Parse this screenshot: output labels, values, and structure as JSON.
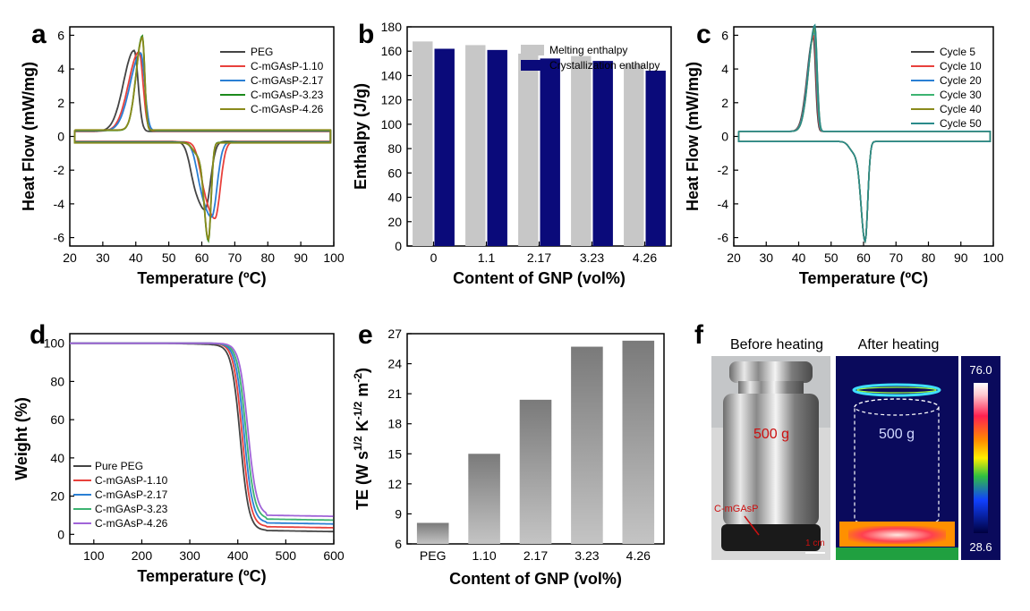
{
  "panels": [
    {
      "letter": "a"
    },
    {
      "letter": "b"
    },
    {
      "letter": "c"
    },
    {
      "letter": "d"
    },
    {
      "letter": "e"
    },
    {
      "letter": "f"
    }
  ],
  "chart_data": [
    {
      "id": "a",
      "type": "line",
      "xlabel": "Temperature (ºC)",
      "ylabel": "Heat Flow (mW/mg)",
      "xlim": [
        20,
        100
      ],
      "ylim": [
        -6.5,
        6.5
      ],
      "xticks": [
        20,
        30,
        40,
        50,
        60,
        70,
        80,
        90,
        100
      ],
      "yticks": [
        -6,
        -4,
        -2,
        0,
        2,
        4,
        6
      ],
      "legend_position": "top-right",
      "series": [
        {
          "name": "PEG",
          "color": "#444444",
          "peak_x": 39.5,
          "peak_y": 4.8,
          "valley_x": 61.0,
          "valley_y": -4.0
        },
        {
          "name": "C-mGAsP-1.10",
          "color": "#e8413c",
          "peak_x": 41.0,
          "peak_y": 4.7,
          "valley_x": 64.0,
          "valley_y": -4.5
        },
        {
          "name": "C-mGAsP-2.17",
          "color": "#2a7fd4",
          "peak_x": 41.5,
          "peak_y": 4.6,
          "valley_x": 63.0,
          "valley_y": -4.4
        },
        {
          "name": "C-mGAsP-3.23",
          "color": "#1c8a1c",
          "peak_x": 42.0,
          "peak_y": 5.6,
          "valley_x": 62.0,
          "valley_y": -5.8
        },
        {
          "name": "C-mGAsP-4.26",
          "color": "#8a8a1c",
          "peak_x": 42.0,
          "peak_y": 5.5,
          "valley_x": 62.0,
          "valley_y": -5.7
        }
      ]
    },
    {
      "id": "b",
      "type": "bar",
      "xlabel": "Content of GNP (vol%)",
      "ylabel": "Enthalpy (J/g)",
      "categories": [
        "0",
        "1.1",
        "2.17",
        "3.23",
        "4.26"
      ],
      "ylim": [
        0,
        180
      ],
      "yticks": [
        0,
        20,
        40,
        60,
        80,
        100,
        120,
        140,
        160,
        180
      ],
      "legend_position": "top-right",
      "series": [
        {
          "name": "Melting enthalpy",
          "color": "#c7c7c7",
          "values": [
            168,
            165,
            158,
            156,
            149
          ]
        },
        {
          "name": "Crystallization enthalpy",
          "color": "#0a0a7a",
          "values": [
            162,
            161,
            154,
            152,
            144
          ]
        }
      ]
    },
    {
      "id": "c",
      "type": "line",
      "xlabel": "Temperature (ºC)",
      "ylabel": "Heat Flow (mW/mg)",
      "xlim": [
        20,
        100
      ],
      "ylim": [
        -6.5,
        6.5
      ],
      "xticks": [
        20,
        30,
        40,
        50,
        60,
        70,
        80,
        90,
        100
      ],
      "yticks": [
        -6,
        -4,
        -2,
        0,
        2,
        4,
        6
      ],
      "legend_position": "top-right",
      "series": [
        {
          "name": "Cycle 5",
          "color": "#444444",
          "peak_x": 44.5,
          "peak_y": 5.6,
          "valley_x": 60.5,
          "valley_y": -5.9
        },
        {
          "name": "Cycle 10",
          "color": "#e8413c",
          "peak_x": 44.7,
          "peak_y": 5.7,
          "valley_x": 60.5,
          "valley_y": -5.9
        },
        {
          "name": "Cycle 20",
          "color": "#2a7fd4",
          "peak_x": 44.8,
          "peak_y": 5.9,
          "valley_x": 60.5,
          "valley_y": -5.9
        },
        {
          "name": "Cycle 30",
          "color": "#3cb371",
          "peak_x": 44.9,
          "peak_y": 6.0,
          "valley_x": 60.5,
          "valley_y": -5.9
        },
        {
          "name": "Cycle 40",
          "color": "#8a8a1c",
          "peak_x": 45.0,
          "peak_y": 6.2,
          "valley_x": 60.5,
          "valley_y": -5.9
        },
        {
          "name": "Cycle 50",
          "color": "#2a8a8a",
          "peak_x": 45.0,
          "peak_y": 6.3,
          "valley_x": 60.5,
          "valley_y": -5.9
        }
      ]
    },
    {
      "id": "d",
      "type": "line",
      "xlabel": "Temperature (ºC)",
      "ylabel": "Weight (%)",
      "xlim": [
        50,
        600
      ],
      "ylim": [
        -5,
        105
      ],
      "xticks": [
        100,
        200,
        300,
        400,
        500,
        600
      ],
      "yticks": [
        0,
        20,
        40,
        60,
        80,
        100
      ],
      "legend_position": "bottom-left",
      "series": [
        {
          "name": "Pure PEG",
          "color": "#444444",
          "residue": 2
        },
        {
          "name": "C-mGAsP-1.10",
          "color": "#e8413c",
          "residue": 4
        },
        {
          "name": "C-mGAsP-2.17",
          "color": "#2a7fd4",
          "residue": 6
        },
        {
          "name": "C-mGAsP-3.23",
          "color": "#3cb371",
          "residue": 8
        },
        {
          "name": "C-mGAsP-4.26",
          "color": "#a064d8",
          "residue": 10
        }
      ]
    },
    {
      "id": "e",
      "type": "bar",
      "xlabel": "Content of GNP (vol%)",
      "ylabel_parts": [
        "TE (W s",
        "1/2",
        " K",
        "-1/2",
        " m",
        "-2",
        ")"
      ],
      "categories": [
        "PEG",
        "1.10",
        "2.17",
        "3.23",
        "4.26"
      ],
      "values": [
        8.1,
        15.0,
        20.4,
        25.7,
        26.3
      ],
      "ylim": [
        6,
        27
      ],
      "yticks": [
        6,
        9,
        12,
        15,
        18,
        21,
        24,
        27
      ]
    },
    {
      "id": "f",
      "type": "photo",
      "left_caption": "Before heating",
      "right_caption": "After heating",
      "weight_label": "500 g",
      "ir_weight_label": "500 g",
      "sample_label": "C-mGAsP",
      "scale_label": "1 cm",
      "colorbar_max": "76.0",
      "colorbar_min": "28.6"
    }
  ]
}
